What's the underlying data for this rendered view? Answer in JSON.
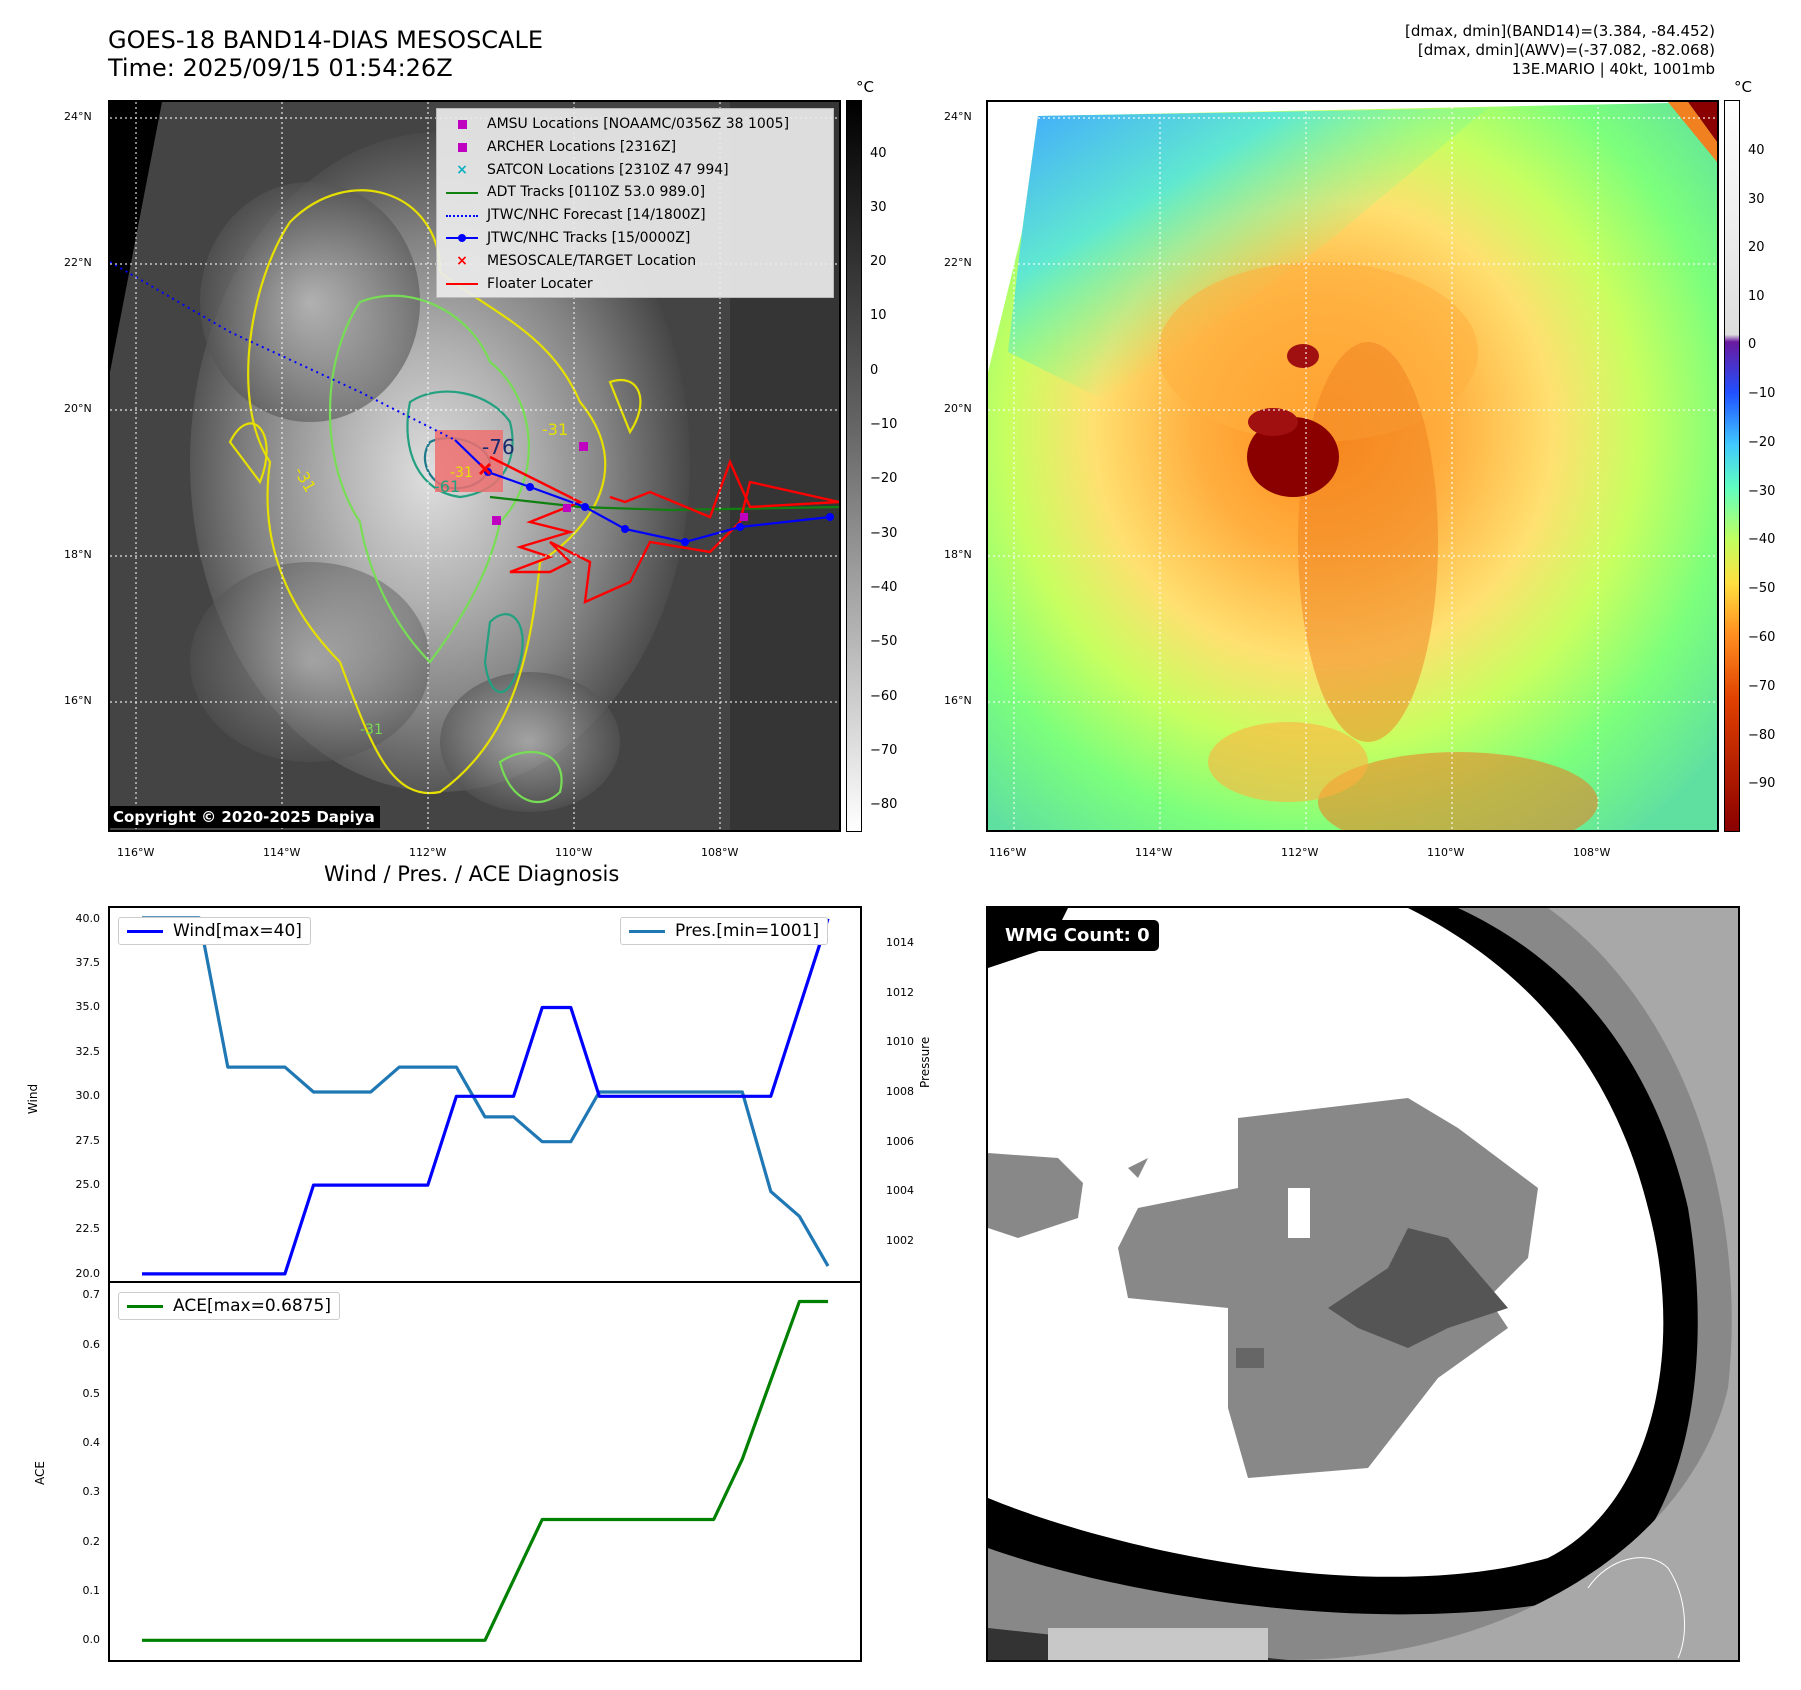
{
  "header": {
    "title_line1": "GOES-18 BAND14-DIAS MESOSCALE",
    "title_line2": "Time: 2025/09/15 01:54:26Z",
    "info_line1": "[dmax, dmin](BAND14)=(3.384, -84.452)",
    "info_line2": "[dmax, dmin](AWV)=(-37.082, -82.068)",
    "info_line3": "13E.MARIO | 40kt, 1001mb"
  },
  "ir_panel": {
    "lat_labels": [
      "24°N",
      "22°N",
      "20°N",
      "18°N",
      "16°N"
    ],
    "lon_labels": [
      "116°W",
      "114°W",
      "112°W",
      "110°W",
      "108°W"
    ],
    "copyright": "Copyright © 2020-2025 Dapiya",
    "contour_labels": [
      "-76",
      "-31",
      "-31",
      "-61",
      "-31",
      "-31"
    ],
    "legend": [
      {
        "label": "AMSU Locations [NOAAMC/0356Z 38 1005]",
        "symbol": "square",
        "color": "#c000c0"
      },
      {
        "label": "ARCHER Locations [2316Z]",
        "symbol": "square",
        "color": "#c000c0"
      },
      {
        "label": "SATCON Locations [2310Z 47 994]",
        "symbol": "x",
        "color": "#10b0c0"
      },
      {
        "label": "ADT Tracks [0110Z 53.0 989.0]",
        "symbol": "line",
        "color": "#108010"
      },
      {
        "label": "JTWC/NHC Forecast [14/1800Z]",
        "symbol": "dotted",
        "color": "#0000ff"
      },
      {
        "label": "JTWC/NHC Tracks [15/0000Z]",
        "symbol": "dotline",
        "color": "#0000ff"
      },
      {
        "label": "MESOSCALE/TARGET Location",
        "symbol": "x",
        "color": "#ff0000"
      },
      {
        "label": "Floater Locater",
        "symbol": "line",
        "color": "#ff0000"
      }
    ],
    "colorbar": {
      "unit": "°C",
      "ticks": [
        "40",
        "30",
        "20",
        "10",
        "0",
        "−10",
        "−20",
        "−30",
        "−40",
        "−50",
        "−60",
        "−70",
        "−80"
      ]
    }
  },
  "awv_panel": {
    "lat_labels": [
      "24°N",
      "22°N",
      "20°N",
      "18°N",
      "16°N"
    ],
    "lon_labels": [
      "116°W",
      "114°W",
      "112°W",
      "110°W",
      "108°W"
    ],
    "colorbar": {
      "unit": "°C",
      "ticks": [
        "40",
        "30",
        "20",
        "10",
        "0",
        "−10",
        "−20",
        "−30",
        "−40",
        "−50",
        "−60",
        "−70",
        "−80",
        "−90"
      ]
    }
  },
  "wmg_panel": {
    "count_label": "WMG Count: 0"
  },
  "chart_title": "Wind / Pres. / ACE Diagnosis",
  "chart_data": [
    {
      "type": "line",
      "x": [
        0,
        1,
        2,
        3,
        4,
        5,
        6,
        7,
        8,
        9,
        10,
        11,
        12,
        13,
        14,
        15,
        16,
        17,
        18,
        19,
        20,
        21,
        22,
        23,
        24
      ],
      "series": [
        {
          "name": "Wind[max=40]",
          "axis": "left",
          "color": "#0000ff",
          "values": [
            20,
            20,
            20,
            20,
            20,
            20,
            25,
            25,
            25,
            25,
            25,
            30,
            30,
            30,
            35,
            35,
            30,
            30,
            30,
            30,
            30,
            30,
            30,
            35,
            40
          ]
        },
        {
          "name": "Pres.[min=1001]",
          "axis": "right",
          "color": "#1f77b4",
          "values": [
            1015,
            1015,
            1015,
            1009,
            1009,
            1009,
            1008,
            1008,
            1008,
            1009,
            1009,
            1009,
            1007,
            1007,
            1006,
            1006,
            1008,
            1008,
            1008,
            1008,
            1008,
            1008,
            1004,
            1003,
            1001
          ]
        }
      ],
      "ylabel": "Wind",
      "ylabel_right": "Pressure",
      "ylim": [
        19.6,
        40.6
      ],
      "ylim_right": [
        1000.4,
        1015.4
      ],
      "yticks": [
        "40.0",
        "37.5",
        "35.0",
        "32.5",
        "30.0",
        "27.5",
        "25.0",
        "22.5",
        "20.0"
      ],
      "yticks_right": [
        "1014",
        "1012",
        "1010",
        "1008",
        "1006",
        "1004",
        "1002"
      ]
    },
    {
      "type": "line",
      "x": [
        0,
        1,
        2,
        3,
        4,
        5,
        6,
        7,
        8,
        9,
        10,
        11,
        12,
        13,
        14,
        15,
        16,
        17,
        18,
        19,
        20,
        21,
        22,
        23,
        24
      ],
      "series": [
        {
          "name": "ACE[max=0.6875]",
          "color": "#008000",
          "values": [
            0,
            0,
            0,
            0,
            0,
            0,
            0,
            0,
            0,
            0,
            0,
            0,
            0,
            0.1225,
            0.245,
            0.245,
            0.245,
            0.245,
            0.245,
            0.245,
            0.245,
            0.3675,
            0.5275,
            0.6875,
            0.6875
          ]
        }
      ],
      "ylabel": "ACE",
      "ylim": [
        -0.04,
        0.725
      ],
      "yticks": [
        "0.7",
        "0.6",
        "0.5",
        "0.4",
        "0.3",
        "0.2",
        "0.1",
        "0.0"
      ]
    }
  ]
}
